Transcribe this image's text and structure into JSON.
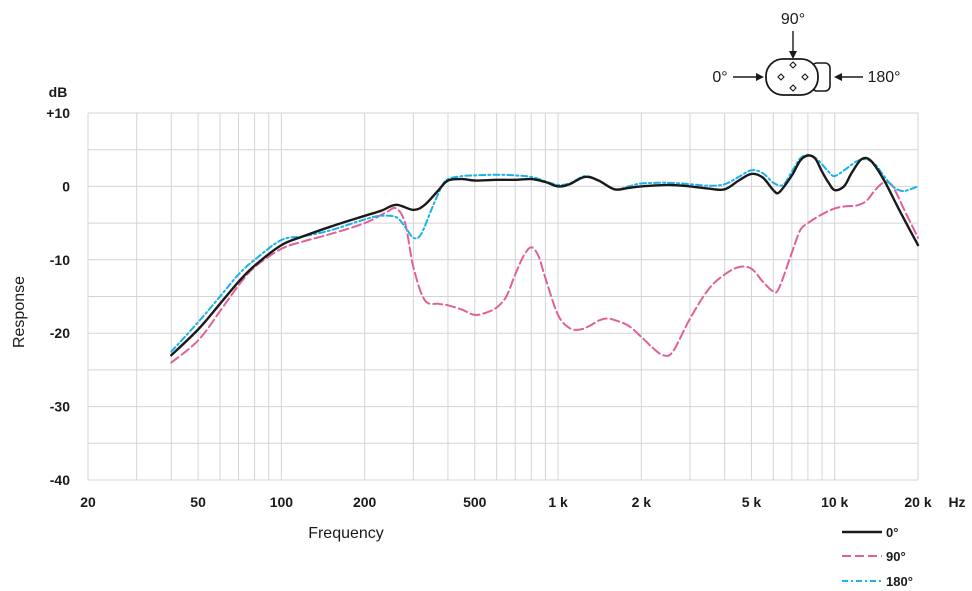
{
  "chart_data": {
    "type": "line",
    "xlabel": "Frequency",
    "ylabel": "Response",
    "y_unit": "dB",
    "x_unit": "Hz",
    "x_scale": "log",
    "xlim": [
      20,
      20000
    ],
    "ylim": [
      -40,
      10
    ],
    "grid": true,
    "legend_position": "bottom-right",
    "x_ticks": [
      {
        "value": 20,
        "label": "20"
      },
      {
        "value": 50,
        "label": "50"
      },
      {
        "value": 100,
        "label": "100"
      },
      {
        "value": 200,
        "label": "200"
      },
      {
        "value": 500,
        "label": "500"
      },
      {
        "value": 1000,
        "label": "1 k"
      },
      {
        "value": 2000,
        "label": "2 k"
      },
      {
        "value": 5000,
        "label": "5 k"
      },
      {
        "value": 10000,
        "label": "10 k"
      },
      {
        "value": 20000,
        "label": "20 k"
      }
    ],
    "y_ticks": [
      {
        "value": 10,
        "label": "+10"
      },
      {
        "value": 0,
        "label": "0"
      },
      {
        "value": -10,
        "label": "-10"
      },
      {
        "value": -20,
        "label": "-20"
      },
      {
        "value": -30,
        "label": "-30"
      },
      {
        "value": -40,
        "label": "-40"
      }
    ],
    "series": [
      {
        "name": "0°",
        "color": "#1a1a1a",
        "dash": "solid",
        "points": [
          [
            40,
            -23
          ],
          [
            50,
            -19.5
          ],
          [
            60,
            -16
          ],
          [
            70,
            -13
          ],
          [
            80,
            -10.8
          ],
          [
            100,
            -8
          ],
          [
            120,
            -6.8
          ],
          [
            150,
            -5.5
          ],
          [
            200,
            -4
          ],
          [
            230,
            -3.3
          ],
          [
            260,
            -2.5
          ],
          [
            300,
            -3.2
          ],
          [
            330,
            -2.5
          ],
          [
            370,
            -0.5
          ],
          [
            400,
            0.8
          ],
          [
            450,
            1
          ],
          [
            500,
            0.8
          ],
          [
            600,
            0.9
          ],
          [
            700,
            0.9
          ],
          [
            800,
            1
          ],
          [
            900,
            0.6
          ],
          [
            1000,
            0
          ],
          [
            1100,
            0.3
          ],
          [
            1250,
            1.3
          ],
          [
            1400,
            0.8
          ],
          [
            1600,
            -0.4
          ],
          [
            1800,
            -0.2
          ],
          [
            2000,
            0
          ],
          [
            2500,
            0.2
          ],
          [
            3000,
            0
          ],
          [
            3500,
            -0.3
          ],
          [
            4000,
            -0.4
          ],
          [
            4500,
            0.8
          ],
          [
            5000,
            1.7
          ],
          [
            5500,
            1.2
          ],
          [
            6000,
            -0.5
          ],
          [
            6300,
            -0.8
          ],
          [
            7000,
            1.5
          ],
          [
            7500,
            3.5
          ],
          [
            8000,
            4.2
          ],
          [
            8500,
            3.8
          ],
          [
            9000,
            2
          ],
          [
            9500,
            0.5
          ],
          [
            10000,
            -0.5
          ],
          [
            10800,
            0
          ],
          [
            11500,
            1.8
          ],
          [
            12500,
            3.7
          ],
          [
            13500,
            3.5
          ],
          [
            15000,
            1
          ],
          [
            17000,
            -3
          ],
          [
            20000,
            -8
          ]
        ]
      },
      {
        "name": "90°",
        "color": "#e0609a",
        "dash": "long-dash",
        "points": [
          [
            40,
            -24
          ],
          [
            50,
            -21
          ],
          [
            60,
            -17
          ],
          [
            70,
            -13.5
          ],
          [
            80,
            -11
          ],
          [
            100,
            -8.5
          ],
          [
            120,
            -7.5
          ],
          [
            150,
            -6.5
          ],
          [
            200,
            -5
          ],
          [
            240,
            -3.5
          ],
          [
            260,
            -3
          ],
          [
            280,
            -5
          ],
          [
            300,
            -11
          ],
          [
            330,
            -15.5
          ],
          [
            370,
            -16
          ],
          [
            400,
            -16.2
          ],
          [
            450,
            -16.8
          ],
          [
            500,
            -17.5
          ],
          [
            550,
            -17.2
          ],
          [
            600,
            -16.5
          ],
          [
            650,
            -15
          ],
          [
            700,
            -12
          ],
          [
            750,
            -9.5
          ],
          [
            800,
            -8.3
          ],
          [
            850,
            -9.5
          ],
          [
            900,
            -12.5
          ],
          [
            1000,
            -17.5
          ],
          [
            1100,
            -19.3
          ],
          [
            1200,
            -19.5
          ],
          [
            1300,
            -19
          ],
          [
            1400,
            -18.3
          ],
          [
            1500,
            -18
          ],
          [
            1600,
            -18.2
          ],
          [
            1800,
            -19
          ],
          [
            2000,
            -20.5
          ],
          [
            2200,
            -22
          ],
          [
            2400,
            -23
          ],
          [
            2600,
            -22.5
          ],
          [
            3000,
            -18
          ],
          [
            3500,
            -14
          ],
          [
            4000,
            -12
          ],
          [
            4500,
            -11
          ],
          [
            5000,
            -11.2
          ],
          [
            5500,
            -13
          ],
          [
            6000,
            -14.3
          ],
          [
            6300,
            -13.8
          ],
          [
            7000,
            -9
          ],
          [
            7500,
            -6
          ],
          [
            8000,
            -5
          ],
          [
            9000,
            -3.8
          ],
          [
            10000,
            -3
          ],
          [
            11000,
            -2.7
          ],
          [
            12000,
            -2.6
          ],
          [
            13000,
            -2
          ],
          [
            14000,
            -0.5
          ],
          [
            15000,
            0.5
          ],
          [
            16000,
            0.3
          ],
          [
            17000,
            -1.5
          ],
          [
            18000,
            -3.5
          ],
          [
            20000,
            -7
          ]
        ]
      },
      {
        "name": "180°",
        "color": "#1ab2e8",
        "dash": "dash-dot",
        "points": [
          [
            40,
            -22.5
          ],
          [
            50,
            -18.5
          ],
          [
            60,
            -15
          ],
          [
            70,
            -12
          ],
          [
            80,
            -10
          ],
          [
            100,
            -7.3
          ],
          [
            120,
            -6.8
          ],
          [
            150,
            -6
          ],
          [
            200,
            -4.5
          ],
          [
            230,
            -4
          ],
          [
            260,
            -4.2
          ],
          [
            280,
            -5.5
          ],
          [
            300,
            -7
          ],
          [
            320,
            -6.5
          ],
          [
            350,
            -3
          ],
          [
            380,
            0
          ],
          [
            400,
            1
          ],
          [
            450,
            1.4
          ],
          [
            500,
            1.5
          ],
          [
            600,
            1.6
          ],
          [
            700,
            1.5
          ],
          [
            800,
            1.3
          ],
          [
            900,
            0.7
          ],
          [
            1000,
            0.2
          ],
          [
            1100,
            0.4
          ],
          [
            1250,
            1.4
          ],
          [
            1400,
            0.8
          ],
          [
            1600,
            -0.4
          ],
          [
            1800,
            0
          ],
          [
            2000,
            0.4
          ],
          [
            2500,
            0.5
          ],
          [
            3000,
            0.3
          ],
          [
            3500,
            0.1
          ],
          [
            4000,
            0.3
          ],
          [
            4500,
            1.3
          ],
          [
            5000,
            2.2
          ],
          [
            5500,
            1.8
          ],
          [
            6000,
            0.5
          ],
          [
            6500,
            0.2
          ],
          [
            7000,
            2
          ],
          [
            7500,
            3.8
          ],
          [
            8000,
            4.3
          ],
          [
            8500,
            3.9
          ],
          [
            9000,
            3
          ],
          [
            9500,
            2
          ],
          [
            10000,
            1.4
          ],
          [
            11000,
            2.4
          ],
          [
            12000,
            3.4
          ],
          [
            13000,
            3.7
          ],
          [
            14000,
            3
          ],
          [
            15000,
            1.5
          ],
          [
            16000,
            0.2
          ],
          [
            17000,
            -0.5
          ],
          [
            18000,
            -0.6
          ],
          [
            20000,
            0
          ]
        ]
      }
    ]
  },
  "diagram": {
    "label_0": "0°",
    "label_90": "90°",
    "label_180": "180°"
  }
}
